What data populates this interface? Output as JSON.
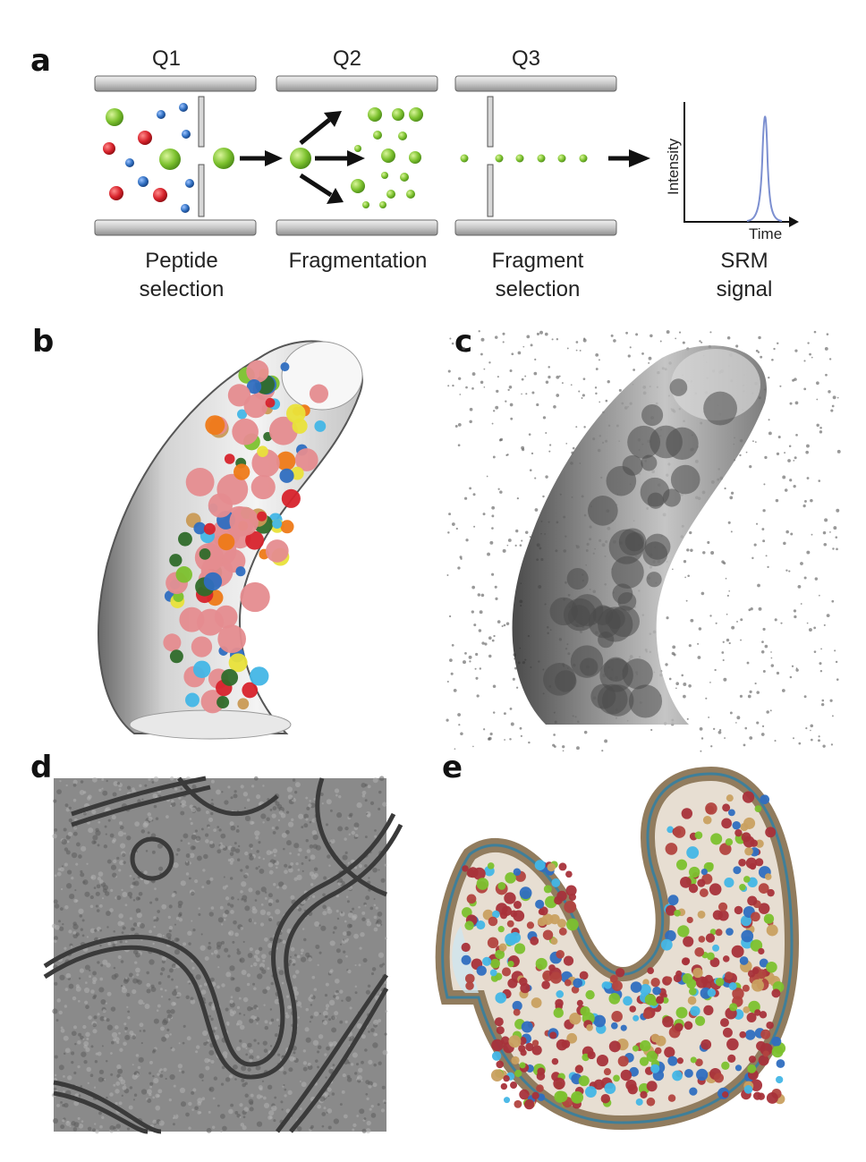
{
  "panels": {
    "a": {
      "letter": "a",
      "stages": [
        {
          "label": "Q1",
          "caption_line1": "Peptide",
          "caption_line2": "selection"
        },
        {
          "label": "Q2",
          "caption_line1": "Fragmentation",
          "caption_line2": ""
        },
        {
          "label": "Q3",
          "caption_line1": "Fragment",
          "caption_line2": "selection"
        }
      ],
      "signal": {
        "caption_line1": "SRM",
        "caption_line2": "signal",
        "y_axis": "Intensity",
        "x_axis": "Time"
      }
    },
    "b": {
      "letter": "b"
    },
    "c": {
      "letter": "c"
    },
    "d": {
      "letter": "d"
    },
    "e": {
      "letter": "e"
    }
  },
  "colors": {
    "green": "#7cc12e",
    "red": "#d7232c",
    "blue": "#2f6ec0",
    "bar": "#c9c9c9",
    "peak": "#7c8fd0",
    "pink": "#e58c8f",
    "darkgreen": "#2f6b2a",
    "cyan": "#43b6e6",
    "yellow": "#e9e23a",
    "orange": "#ee7a18"
  }
}
